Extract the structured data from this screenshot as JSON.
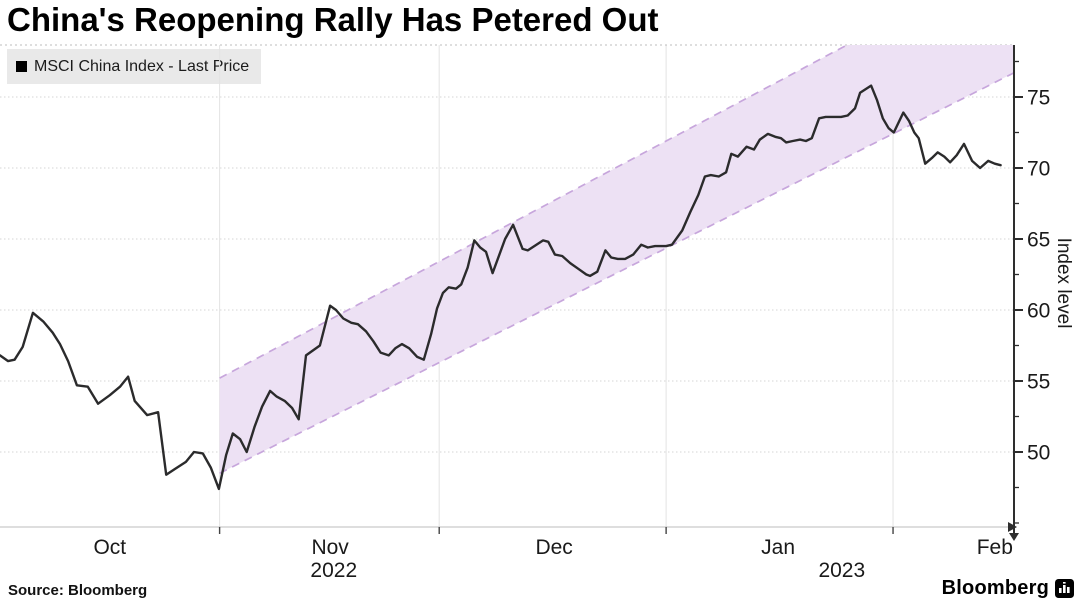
{
  "title": "China's Reopening Rally Has Petered Out",
  "legend": {
    "swatch_color": "#000000",
    "label": "MSCI China Index - Last Price"
  },
  "source": "Source: Bloomberg",
  "brand": {
    "text": "Bloomberg",
    "icon": "bar-chart-icon"
  },
  "colors": {
    "price_line": "#2b2b2c",
    "channel_fill": "#ede1f4",
    "channel_edge": "#c7a6dc",
    "grid": "#e3e3e3",
    "axis": "#2e2e2e",
    "tick_label": "#1a1a1a",
    "legend_bg": "#e9e9e9"
  },
  "chart_data": {
    "type": "line",
    "title": "China's Reopening Rally Has Petered Out",
    "x_unit": "days (0 = chart start, early Oct 2022)",
    "x_range_days": [
      0,
      138.5
    ],
    "x_months": [
      {
        "label": "Oct",
        "day": 15.0
      },
      {
        "label": "Nov",
        "day": 45.1
      },
      {
        "label": "Dec",
        "day": 75.7
      },
      {
        "label": "Jan",
        "day": 106.3
      },
      {
        "label": "Feb",
        "day": 135.9
      }
    ],
    "x_years": [
      {
        "label": "2022",
        "day": 45.6
      },
      {
        "label": "2023",
        "day": 115.0
      }
    ],
    "month_tick_days": [
      30,
      60,
      91,
      122
    ],
    "y_axis": {
      "label": "Index level",
      "ticks": [
        50,
        55,
        60,
        65,
        70,
        75
      ],
      "minor_ticks": [
        45,
        47.5,
        52.5,
        57.5,
        62.5,
        67.5,
        72.5,
        77.5
      ],
      "range": [
        44.3,
        78.7
      ],
      "side": "right"
    },
    "channel": {
      "name": "rally-trend-channel",
      "start_day": 30,
      "end_day": 138.5,
      "upper_values": [
        55.2,
        84.9
      ],
      "lower_values": [
        48.5,
        76.7
      ]
    },
    "series": [
      {
        "name": "MSCI China Index - Last Price",
        "points": [
          [
            0,
            56.8
          ],
          [
            1.1,
            56.4
          ],
          [
            2,
            56.5
          ],
          [
            3.1,
            57.4
          ],
          [
            4.5,
            59.8
          ],
          [
            5.9,
            59.2
          ],
          [
            7.2,
            58.4
          ],
          [
            8.2,
            57.6
          ],
          [
            9.3,
            56.4
          ],
          [
            10.5,
            54.7
          ],
          [
            12,
            54.6
          ],
          [
            13.4,
            53.4
          ],
          [
            15,
            54
          ],
          [
            16.4,
            54.6
          ],
          [
            17.5,
            55.3
          ],
          [
            18.4,
            53.6
          ],
          [
            20.1,
            52.6
          ],
          [
            21.6,
            52.8
          ],
          [
            22.7,
            48.4
          ],
          [
            23.9,
            48.8
          ],
          [
            25.4,
            49.3
          ],
          [
            26.5,
            50
          ],
          [
            27.7,
            49.9
          ],
          [
            28.8,
            48.9
          ],
          [
            29.9,
            47.4
          ],
          [
            30.9,
            49.8
          ],
          [
            31.8,
            51.3
          ],
          [
            32.8,
            50.9
          ],
          [
            33.7,
            50
          ],
          [
            34.8,
            51.8
          ],
          [
            35.8,
            53.2
          ],
          [
            36.9,
            54.3
          ],
          [
            37.8,
            53.9
          ],
          [
            38.9,
            53.6
          ],
          [
            39.9,
            53.1
          ],
          [
            40.8,
            52.3
          ],
          [
            41.8,
            56.8
          ],
          [
            43.7,
            57.5
          ],
          [
            45.1,
            60.3
          ],
          [
            45.9,
            60
          ],
          [
            46.9,
            59.4
          ],
          [
            48,
            59.1
          ],
          [
            48.9,
            59
          ],
          [
            50,
            58.5
          ],
          [
            51,
            57.8
          ],
          [
            52,
            57
          ],
          [
            53.1,
            56.8
          ],
          [
            54,
            57.3
          ],
          [
            54.9,
            57.6
          ],
          [
            55.9,
            57.3
          ],
          [
            57,
            56.7
          ],
          [
            57.9,
            56.5
          ],
          [
            58.9,
            58.3
          ],
          [
            59.7,
            60.1
          ],
          [
            60.5,
            61.2
          ],
          [
            61.3,
            61.6
          ],
          [
            62.3,
            61.5
          ],
          [
            63,
            61.8
          ],
          [
            63.9,
            63
          ],
          [
            64.8,
            64.9
          ],
          [
            65.6,
            64.4
          ],
          [
            66.4,
            64.1
          ],
          [
            67.3,
            62.6
          ],
          [
            69,
            65
          ],
          [
            70.1,
            66
          ],
          [
            71.4,
            64.3
          ],
          [
            72.1,
            64.2
          ],
          [
            74.2,
            64.9
          ],
          [
            74.9,
            64.8
          ],
          [
            75.8,
            63.9
          ],
          [
            76.8,
            63.8
          ],
          [
            77.9,
            63.3
          ],
          [
            79,
            62.9
          ],
          [
            80.1,
            62.5
          ],
          [
            80.6,
            62.4
          ],
          [
            81.6,
            62.7
          ],
          [
            82.7,
            64.2
          ],
          [
            83.5,
            63.7
          ],
          [
            84.4,
            63.6
          ],
          [
            85.4,
            63.6
          ],
          [
            86.5,
            63.9
          ],
          [
            87.6,
            64.6
          ],
          [
            88.5,
            64.4
          ],
          [
            89.5,
            64.5
          ],
          [
            90.3,
            64.5
          ],
          [
            91,
            64.5
          ],
          [
            91.8,
            64.6
          ],
          [
            93.2,
            65.6
          ],
          [
            94.3,
            66.9
          ],
          [
            95.4,
            68.1
          ],
          [
            96.3,
            69.4
          ],
          [
            97.1,
            69.5
          ],
          [
            98.2,
            69.4
          ],
          [
            99.2,
            69.7
          ],
          [
            99.9,
            71
          ],
          [
            100.8,
            70.8
          ],
          [
            102,
            71.5
          ],
          [
            103,
            71.3
          ],
          [
            103.8,
            72
          ],
          [
            104.9,
            72.4
          ],
          [
            105.9,
            72.2
          ],
          [
            106.7,
            72.1
          ],
          [
            107.4,
            71.8
          ],
          [
            108.3,
            71.9
          ],
          [
            109.3,
            72
          ],
          [
            110.1,
            71.9
          ],
          [
            110.9,
            72.1
          ],
          [
            111.9,
            73.5
          ],
          [
            112.8,
            73.6
          ],
          [
            113.9,
            73.6
          ],
          [
            114.9,
            73.6
          ],
          [
            115.8,
            73.7
          ],
          [
            116.8,
            74.2
          ],
          [
            117.5,
            75.3
          ],
          [
            119,
            75.8
          ],
          [
            119.8,
            74.8
          ],
          [
            120.6,
            73.5
          ],
          [
            121.4,
            72.8
          ],
          [
            122.1,
            72.5
          ],
          [
            123.4,
            73.9
          ],
          [
            124.2,
            73.3
          ],
          [
            124.9,
            72.5
          ],
          [
            125.5,
            72.1
          ],
          [
            126.4,
            70.3
          ],
          [
            127.3,
            70.7
          ],
          [
            128.1,
            71.1
          ],
          [
            129,
            70.8
          ],
          [
            129.8,
            70.4
          ],
          [
            130.7,
            70.9
          ],
          [
            131.7,
            71.7
          ],
          [
            132.8,
            70.5
          ],
          [
            133.9,
            70
          ],
          [
            135,
            70.5
          ],
          [
            135.9,
            70.3
          ],
          [
            136.7,
            70.2
          ]
        ]
      }
    ]
  }
}
